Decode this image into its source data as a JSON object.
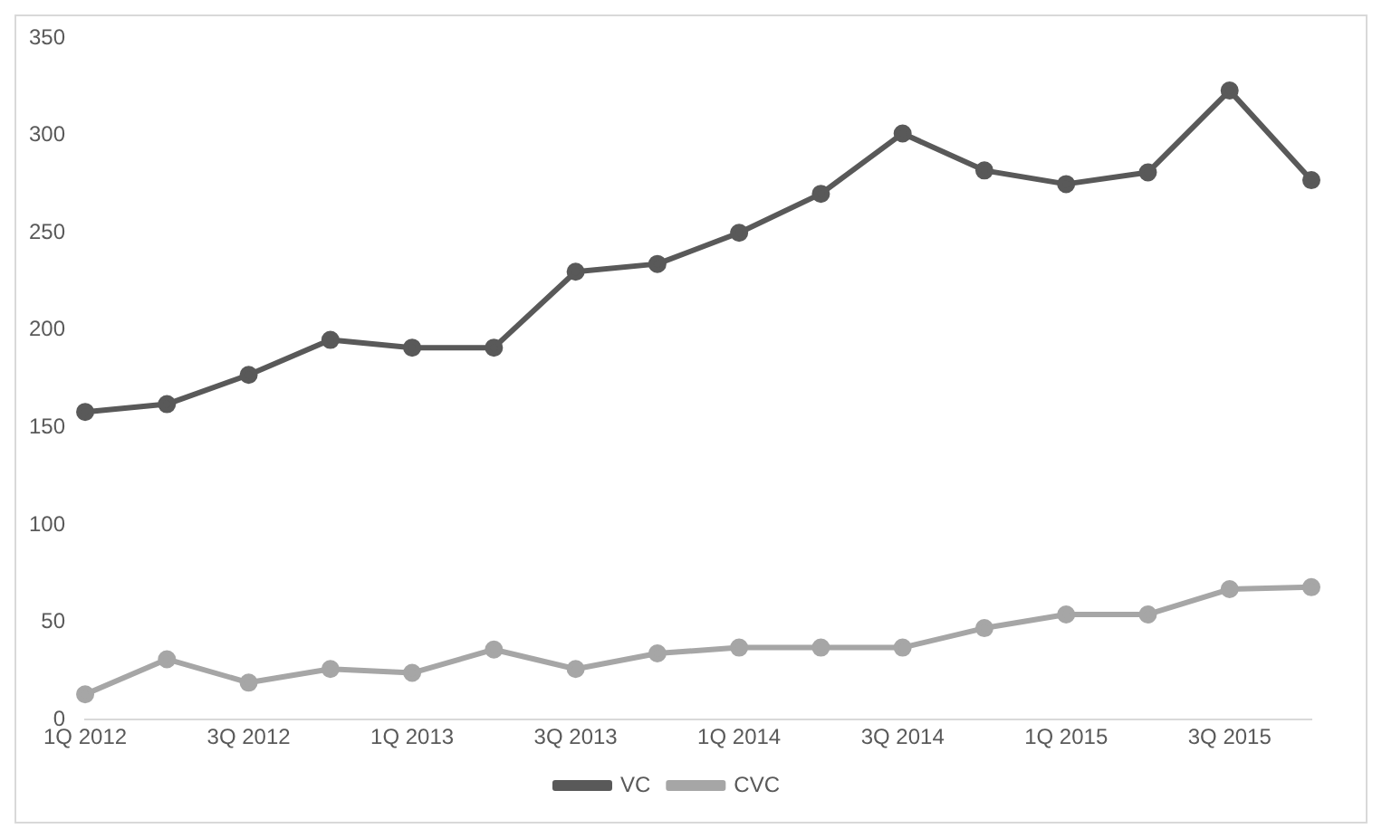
{
  "chart_data": {
    "type": "line",
    "categories": [
      "1Q 2012",
      null,
      "3Q 2012",
      null,
      "1Q 2013",
      null,
      "3Q 2013",
      null,
      "1Q 2014",
      null,
      "3Q 2014",
      null,
      "1Q 2015",
      null,
      "3Q 2015",
      null
    ],
    "series": [
      {
        "name": "VC",
        "color": "#595959",
        "values": [
          158,
          162,
          177,
          195,
          191,
          191,
          230,
          234,
          250,
          270,
          301,
          282,
          275,
          281,
          323,
          277
        ]
      },
      {
        "name": "CVC",
        "color": "#a6a6a6",
        "values": [
          13,
          31,
          19,
          26,
          24,
          36,
          26,
          34,
          37,
          37,
          37,
          47,
          54,
          54,
          67,
          68
        ]
      }
    ],
    "ylim": [
      0,
      350
    ],
    "yticks": [
      0,
      50,
      100,
      150,
      200,
      250,
      300,
      350
    ],
    "grid": false,
    "legend": "bottom",
    "marker": "circle",
    "line_style": "solid"
  }
}
